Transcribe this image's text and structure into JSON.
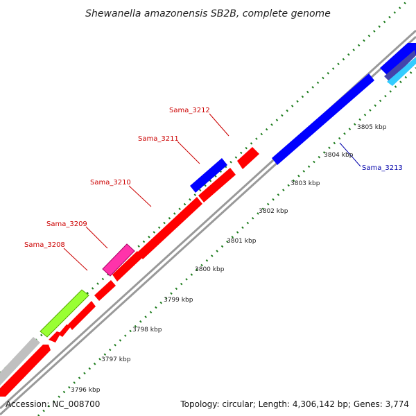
{
  "title": "Shewanella amazonensis SB2B, complete genome",
  "accession": "Accession: NC_008700",
  "summary": "Topology: circular; Length: 4,306,142 bp; Genes: 3,774",
  "colors": {
    "forward": "#ff0000",
    "reverse": "#0000ff",
    "backbone": "#999999",
    "ticks": "#1a7a1a",
    "label_forward": "#cc0000",
    "label_reverse": "#0000aa",
    "gray_feature": "#c0c0c0",
    "green_feature": "#99ff33",
    "pink_feature": "#ff33aa",
    "light_blue_feature": "#33ccff",
    "dark_blue_feature": "#4444aa"
  },
  "ticks": [
    {
      "label": "3796 kbp"
    },
    {
      "label": "3797 kbp"
    },
    {
      "label": "3798 kbp"
    },
    {
      "label": "3799 kbp"
    },
    {
      "label": "3800 kbp"
    },
    {
      "label": "3801 kbp"
    },
    {
      "label": "3802 kbp"
    },
    {
      "label": "3803 kbp"
    },
    {
      "label": "3804 kbp"
    },
    {
      "label": "3805 kbp"
    }
  ],
  "gene_labels": [
    {
      "name": "Sama_3208",
      "strand": "forward"
    },
    {
      "name": "Sama_3209",
      "strand": "forward"
    },
    {
      "name": "Sama_3210",
      "strand": "forward"
    },
    {
      "name": "Sama_3211",
      "strand": "forward"
    },
    {
      "name": "Sama_3212",
      "strand": "forward"
    },
    {
      "name": "Sama_3213",
      "strand": "reverse"
    }
  ]
}
